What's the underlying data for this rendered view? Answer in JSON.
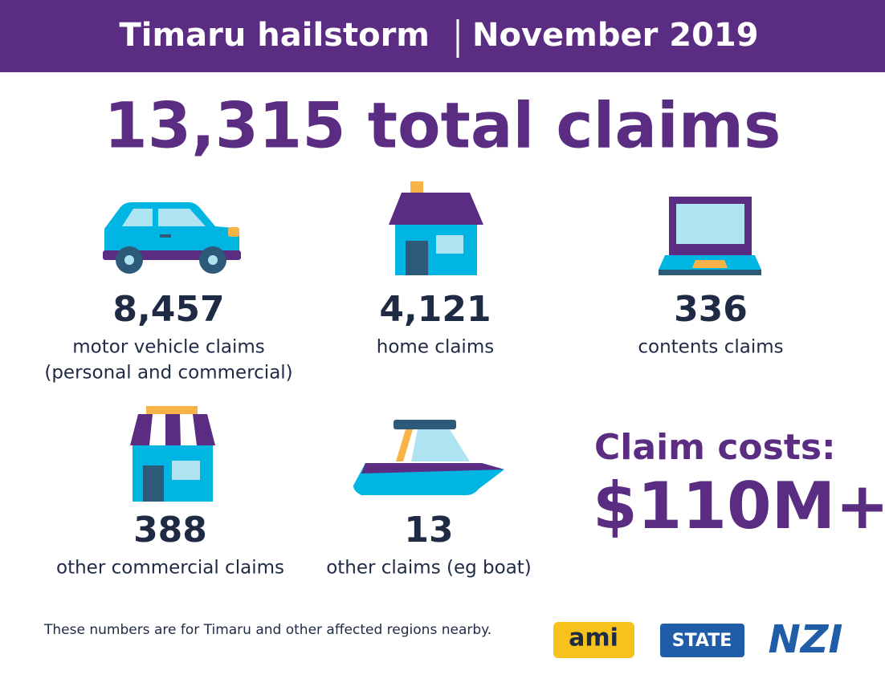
{
  "header": {
    "title_left": "Timaru hailstorm",
    "title_right": "November 2019"
  },
  "total": "13,315 total claims",
  "items": [
    {
      "value": "8,457",
      "lines": [
        "motor vehicle claims",
        "(personal and commercial)"
      ]
    },
    {
      "value": "4,121",
      "lines": [
        "home claims"
      ]
    },
    {
      "value": "336",
      "lines": [
        "contents claims"
      ]
    },
    {
      "value": "388",
      "lines": [
        "other commercial claims"
      ]
    },
    {
      "value": "13",
      "lines": [
        "other claims (eg boat)"
      ]
    }
  ],
  "costs": {
    "label": "Claim costs:",
    "value": "$110M+"
  },
  "footnote": "These numbers are for Timaru and other affected regions nearby.",
  "logos": [
    "ami",
    "STATE",
    "NZI"
  ]
}
